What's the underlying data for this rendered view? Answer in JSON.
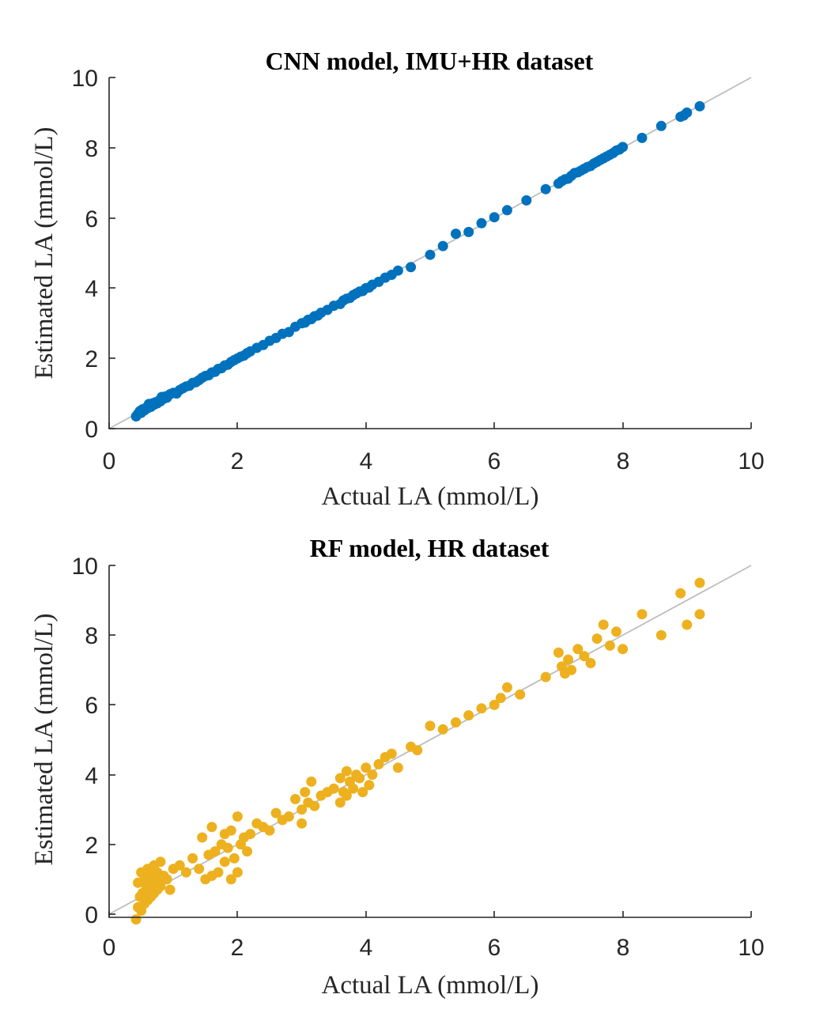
{
  "chart_data": [
    {
      "type": "scatter",
      "title": "CNN model, IMU+HR dataset",
      "xlabel": "Actual LA (mmol/L)",
      "ylabel": "Estimated LA (mmol/L)",
      "xlim": [
        0,
        10
      ],
      "ylim": [
        0,
        10
      ],
      "xticks": [
        0,
        2,
        4,
        6,
        8,
        10
      ],
      "yticks": [
        0,
        2,
        4,
        6,
        8,
        10
      ],
      "reference_line": [
        [
          0,
          0
        ],
        [
          10,
          10
        ]
      ],
      "reference_color": "#bdbdbd",
      "color": "#0072bd",
      "grid": false,
      "legend": "none",
      "series": [
        {
          "x": [
            0.42,
            0.45,
            0.48,
            0.5,
            0.52,
            0.55,
            0.58,
            0.6,
            0.62,
            0.65,
            0.68,
            0.7,
            0.72,
            0.75,
            0.78,
            0.8,
            0.82,
            0.85,
            0.88,
            0.9,
            0.95,
            1.0,
            1.05,
            1.1,
            1.15,
            1.2,
            1.25,
            1.3,
            1.35,
            1.4,
            1.45,
            1.5,
            1.55,
            1.6,
            1.65,
            1.7,
            1.75,
            1.8,
            1.85,
            1.9,
            1.95,
            2.0,
            2.05,
            2.1,
            2.15,
            2.2,
            2.3,
            2.4,
            2.5,
            2.6,
            2.7,
            2.8,
            2.9,
            3.0,
            3.05,
            3.1,
            3.15,
            3.2,
            3.25,
            3.3,
            3.4,
            3.5,
            3.6,
            3.65,
            3.7,
            3.75,
            3.8,
            3.85,
            3.9,
            3.95,
            4.0,
            4.05,
            4.1,
            4.2,
            4.3,
            4.4,
            4.5,
            4.7,
            5.0,
            5.2,
            5.4,
            5.6,
            5.8,
            6.0,
            6.2,
            6.5,
            6.8,
            7.0,
            7.05,
            7.1,
            7.15,
            7.2,
            7.25,
            7.3,
            7.35,
            7.4,
            7.45,
            7.5,
            7.55,
            7.6,
            7.65,
            7.7,
            7.75,
            7.8,
            7.85,
            7.9,
            7.95,
            8.0,
            8.3,
            8.6,
            8.9,
            8.95,
            9.0,
            9.2
          ],
          "y": [
            0.35,
            0.42,
            0.5,
            0.45,
            0.55,
            0.52,
            0.6,
            0.58,
            0.7,
            0.62,
            0.72,
            0.68,
            0.75,
            0.72,
            0.8,
            0.78,
            0.9,
            0.85,
            0.92,
            0.88,
            0.98,
            1.02,
            1.0,
            1.1,
            1.15,
            1.2,
            1.22,
            1.3,
            1.32,
            1.38,
            1.45,
            1.5,
            1.52,
            1.6,
            1.62,
            1.7,
            1.72,
            1.8,
            1.82,
            1.9,
            1.95,
            2.0,
            2.05,
            2.08,
            2.15,
            2.2,
            2.3,
            2.38,
            2.5,
            2.58,
            2.7,
            2.75,
            2.9,
            3.0,
            3.02,
            3.1,
            3.12,
            3.2,
            3.22,
            3.3,
            3.38,
            3.5,
            3.55,
            3.65,
            3.7,
            3.72,
            3.8,
            3.85,
            3.9,
            3.92,
            4.0,
            4.02,
            4.1,
            4.18,
            4.3,
            4.38,
            4.5,
            4.6,
            4.95,
            5.2,
            5.55,
            5.6,
            5.85,
            6.02,
            6.22,
            6.5,
            6.82,
            6.98,
            7.05,
            7.1,
            7.12,
            7.2,
            7.28,
            7.3,
            7.35,
            7.4,
            7.45,
            7.48,
            7.55,
            7.6,
            7.65,
            7.7,
            7.75,
            7.8,
            7.85,
            7.92,
            7.95,
            8.02,
            8.28,
            8.62,
            8.88,
            8.92,
            9.0,
            9.18
          ]
        }
      ]
    },
    {
      "type": "scatter",
      "title": "RF model, HR dataset",
      "xlabel": "Actual LA (mmol/L)",
      "ylabel": "Estimated LA (mmol/L)",
      "xlim": [
        0,
        10
      ],
      "ylim": [
        0,
        10
      ],
      "xticks": [
        0,
        2,
        4,
        6,
        8,
        10
      ],
      "yticks": [
        0,
        2,
        4,
        6,
        8,
        10
      ],
      "reference_line": [
        [
          0,
          0
        ],
        [
          10,
          10
        ]
      ],
      "reference_color": "#bdbdbd",
      "color": "#edb120",
      "grid": false,
      "legend": "none",
      "series": [
        {
          "x": [
            0.42,
            0.45,
            0.45,
            0.48,
            0.5,
            0.5,
            0.52,
            0.55,
            0.55,
            0.58,
            0.6,
            0.6,
            0.62,
            0.65,
            0.65,
            0.68,
            0.7,
            0.7,
            0.72,
            0.75,
            0.75,
            0.78,
            0.8,
            0.8,
            0.85,
            0.9,
            0.95,
            1.0,
            1.1,
            1.2,
            1.3,
            1.4,
            1.45,
            1.5,
            1.55,
            1.6,
            1.6,
            1.65,
            1.7,
            1.75,
            1.8,
            1.8,
            1.85,
            1.9,
            1.9,
            1.95,
            2.0,
            2.0,
            2.05,
            2.1,
            2.15,
            2.2,
            2.3,
            2.4,
            2.5,
            2.6,
            2.7,
            2.8,
            2.9,
            3.0,
            3.0,
            3.05,
            3.1,
            3.15,
            3.2,
            3.3,
            3.4,
            3.5,
            3.6,
            3.6,
            3.65,
            3.7,
            3.7,
            3.75,
            3.8,
            3.85,
            3.9,
            3.95,
            4.0,
            4.05,
            4.1,
            4.2,
            4.3,
            4.4,
            4.5,
            4.7,
            4.8,
            5.0,
            5.2,
            5.4,
            5.6,
            5.8,
            6.0,
            6.1,
            6.2,
            6.4,
            6.8,
            7.0,
            7.05,
            7.1,
            7.15,
            7.2,
            7.3,
            7.4,
            7.5,
            7.6,
            7.7,
            7.8,
            7.9,
            8.0,
            8.3,
            8.6,
            8.9,
            9.0,
            9.2,
            9.2
          ],
          "y": [
            -0.15,
            0.2,
            0.9,
            0.5,
            1.2,
            0.1,
            0.6,
            0.3,
            1.0,
            0.8,
            0.4,
            1.3,
            0.7,
            1.1,
            0.5,
            0.9,
            1.4,
            0.6,
            1.0,
            0.7,
            1.2,
            0.9,
            1.5,
            0.8,
            1.1,
            1.0,
            0.7,
            1.3,
            1.4,
            1.2,
            1.6,
            1.3,
            2.2,
            1.0,
            1.7,
            1.1,
            2.5,
            1.8,
            1.2,
            2.0,
            1.5,
            2.3,
            1.9,
            1.0,
            2.4,
            1.6,
            1.2,
            2.8,
            2.0,
            2.2,
            1.8,
            2.3,
            2.6,
            2.5,
            2.4,
            2.9,
            2.7,
            2.8,
            3.3,
            3.0,
            2.6,
            3.5,
            3.2,
            3.8,
            3.1,
            3.4,
            3.5,
            3.6,
            3.2,
            3.9,
            3.5,
            3.4,
            4.1,
            3.8,
            3.6,
            4.0,
            3.9,
            3.5,
            4.2,
            3.7,
            4.0,
            4.3,
            4.5,
            4.6,
            4.2,
            4.8,
            4.7,
            5.4,
            5.3,
            5.5,
            5.7,
            5.9,
            6.0,
            6.2,
            6.5,
            6.3,
            6.8,
            7.5,
            7.1,
            6.9,
            7.3,
            7.0,
            7.6,
            7.4,
            7.2,
            7.9,
            8.3,
            7.7,
            8.1,
            7.6,
            8.6,
            8.0,
            9.2,
            8.3,
            8.6,
            9.5
          ]
        }
      ]
    }
  ]
}
